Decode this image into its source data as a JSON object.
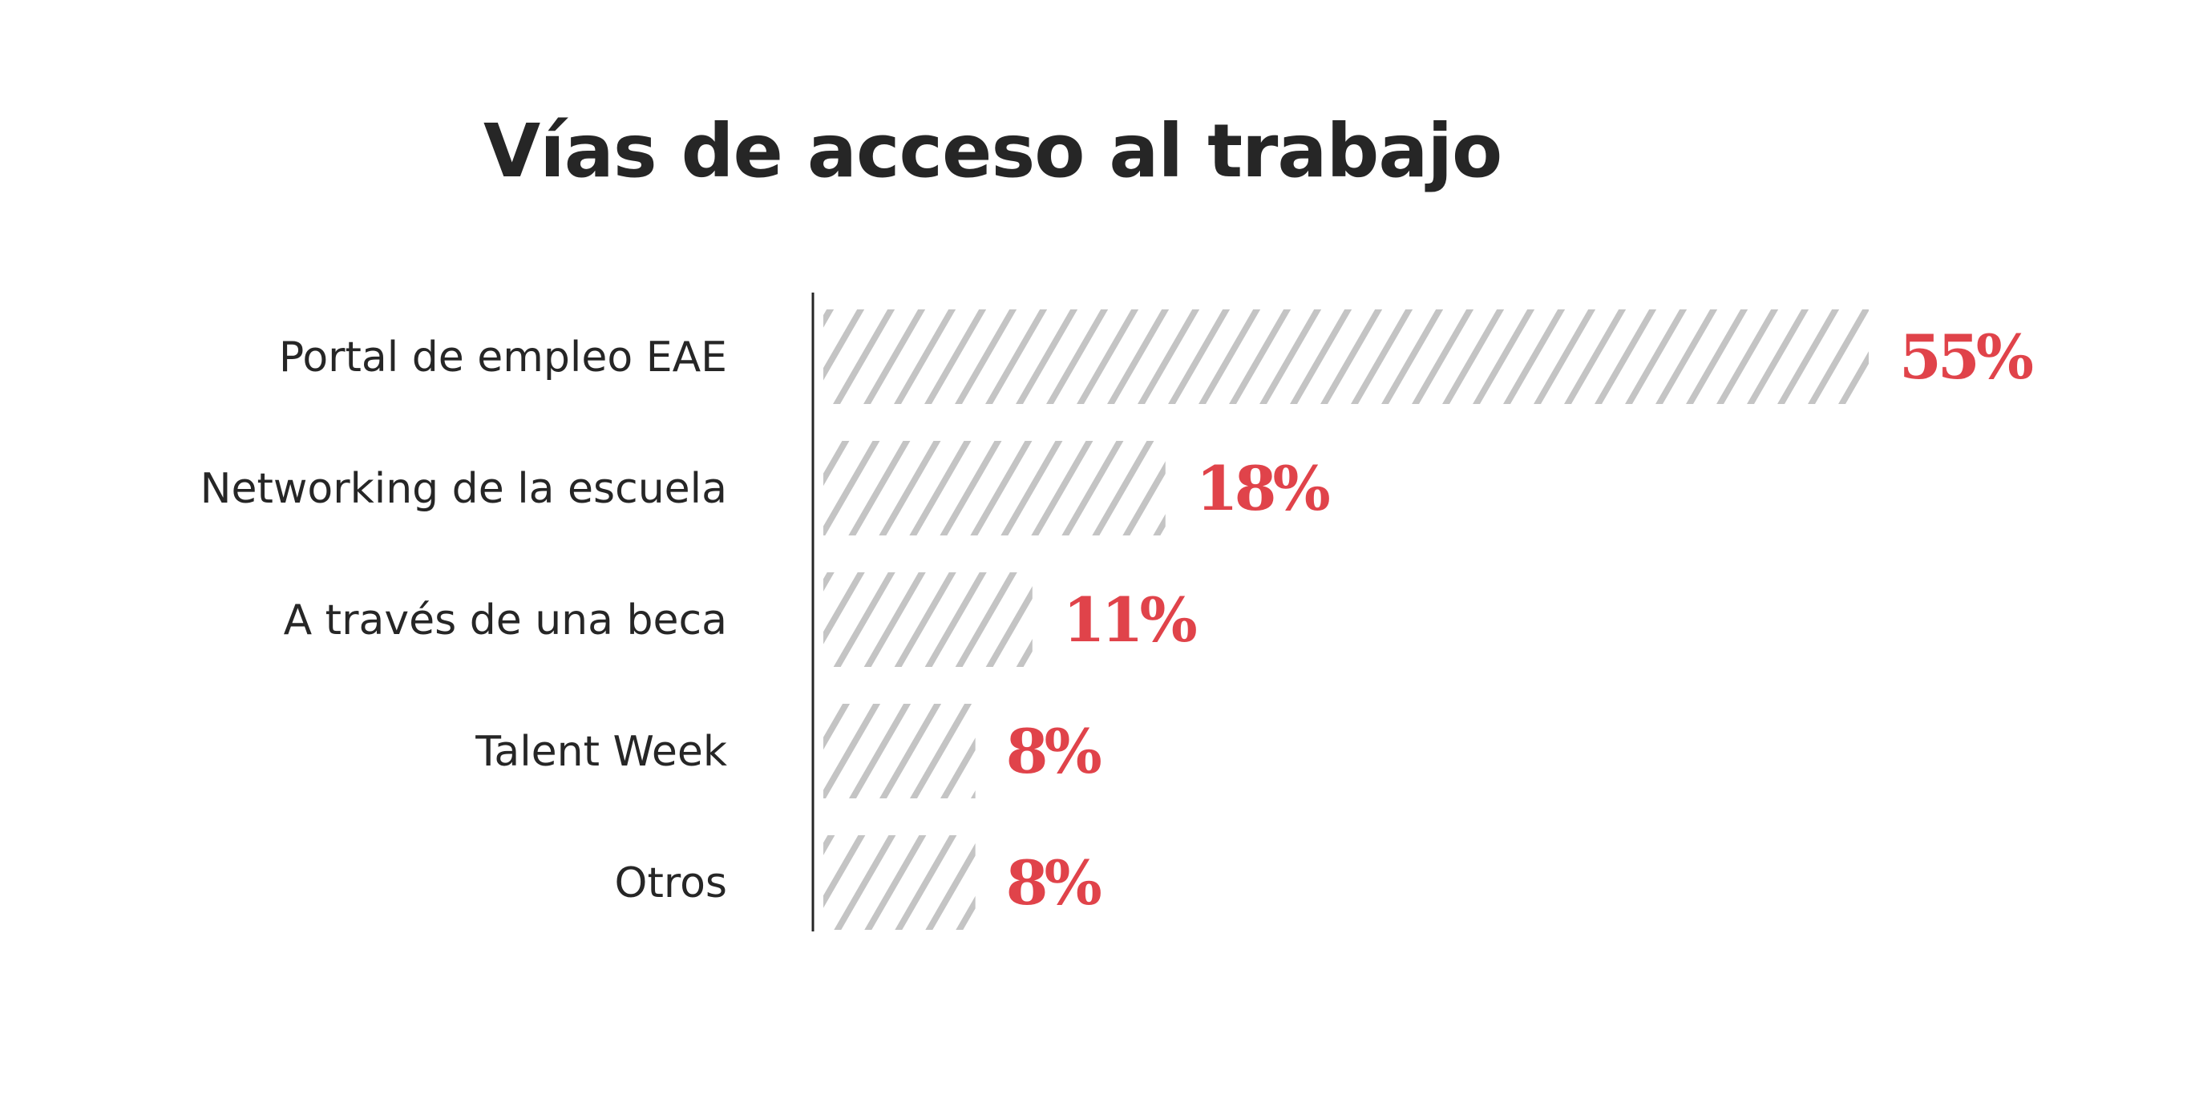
{
  "chart_data": {
    "type": "bar",
    "orientation": "horizontal",
    "title": "Vías de acceso al trabajo",
    "categories": [
      "Portal de empleo EAE",
      "Networking de la escuela",
      "A través de una beca",
      "Talent Week",
      "Otros"
    ],
    "values": [
      55,
      18,
      11,
      8,
      8
    ],
    "value_labels": [
      "55%",
      "18%",
      "11%",
      "8%",
      "8%"
    ],
    "xlim": [
      0,
      55
    ],
    "grid": false,
    "bar_fill": "hatched",
    "colors": {
      "bar": "#c4c4c4",
      "value_label": "#e0434a",
      "text": "#262626",
      "axis": "#262626"
    }
  }
}
